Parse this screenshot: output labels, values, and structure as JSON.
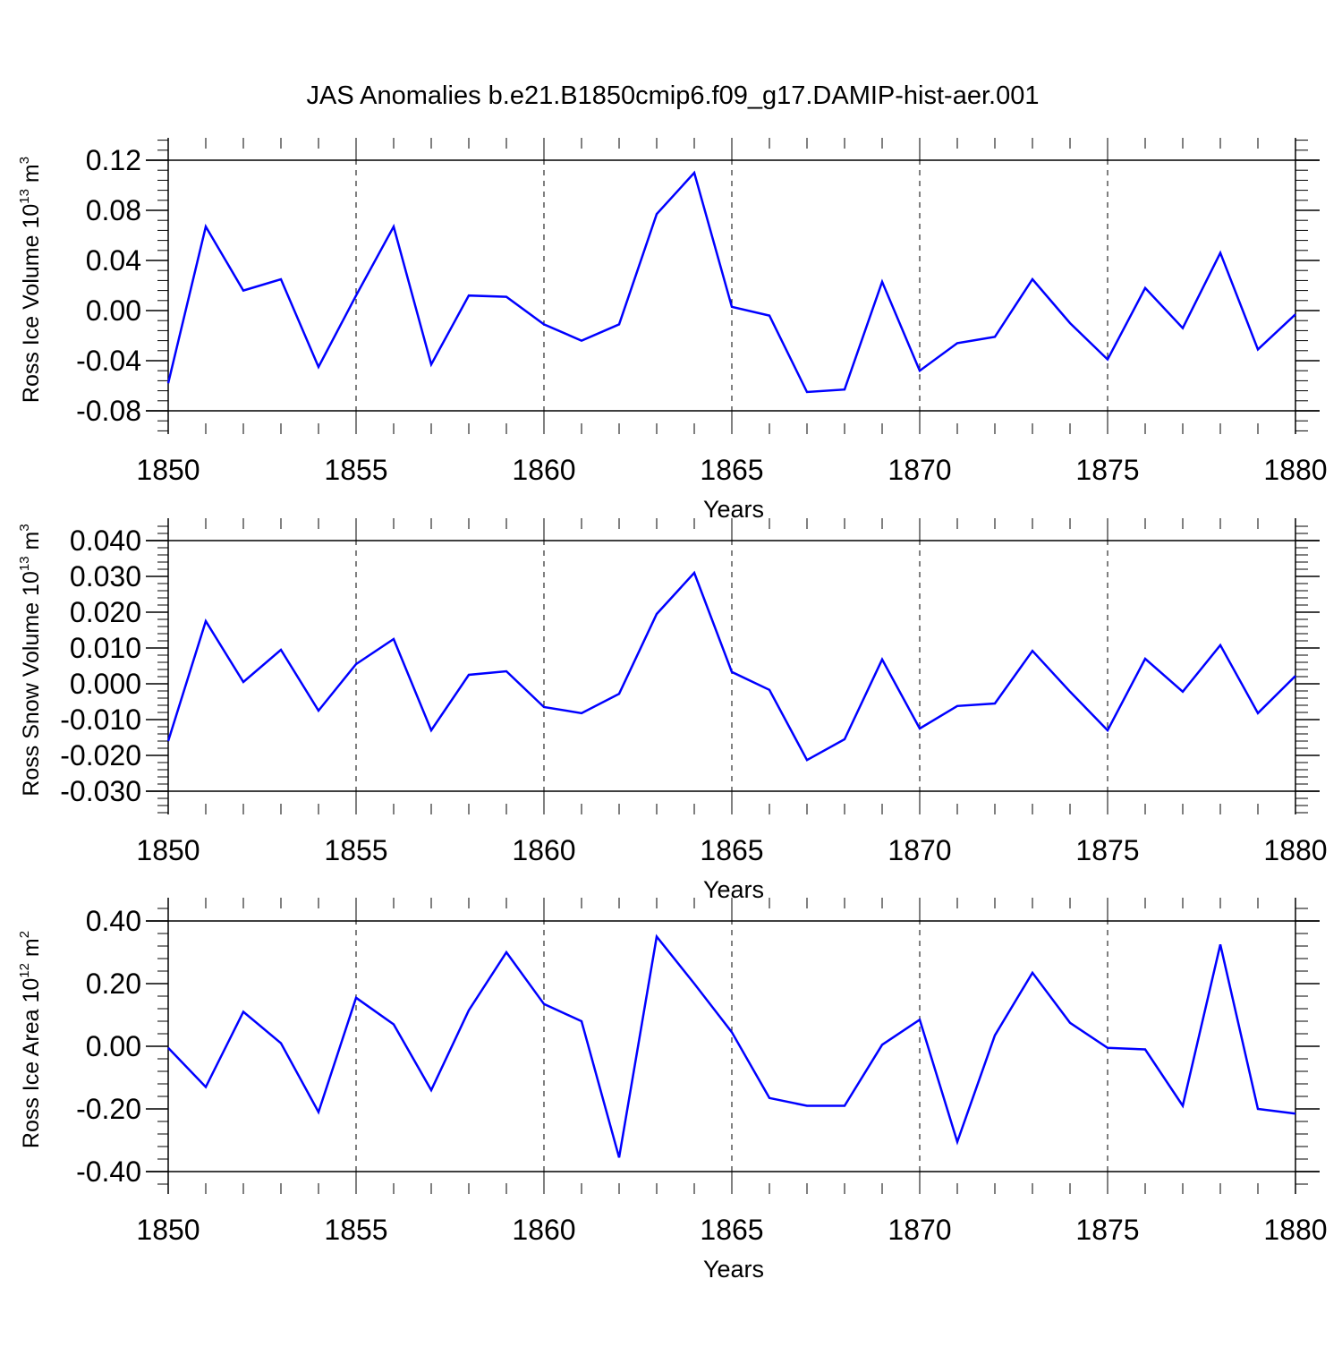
{
  "title": "JAS Anomalies b.e21.B1850cmip6.f09_g17.DAMIP-hist-aer.001",
  "series_color": "#0000ff",
  "chart_data": [
    {
      "type": "line",
      "ylabel": {
        "text": "Ross Ice Volume 10",
        "exp": "13",
        "unit": " m",
        "unit_exp": "3"
      },
      "xlabel": "Years",
      "xlim": [
        1850,
        1880
      ],
      "ylim": [
        -0.09,
        0.12
      ],
      "yticks": [
        0.12,
        0.08,
        0.04,
        0.0,
        -0.04,
        -0.08
      ],
      "ytick_labels": [
        "0.12",
        "0.08",
        "0.04",
        "0.00",
        "-0.04",
        "-0.08"
      ],
      "xticks": [
        1850,
        1855,
        1860,
        1865,
        1870,
        1875,
        1880
      ],
      "xtick_labels": [
        "1850",
        "1855",
        "1860",
        "1865",
        "1870",
        "1875",
        "1880"
      ],
      "grid": "dashed vertical at major x ticks",
      "x": [
        1850,
        1851,
        1852,
        1853,
        1854,
        1855,
        1856,
        1857,
        1858,
        1859,
        1860,
        1861,
        1862,
        1863,
        1864,
        1865,
        1866,
        1867,
        1868,
        1869,
        1870,
        1871,
        1872,
        1873,
        1874,
        1875,
        1876,
        1877,
        1878,
        1879,
        1880
      ],
      "values": [
        -0.058,
        0.067,
        0.016,
        0.025,
        -0.045,
        0.012,
        0.067,
        -0.043,
        0.012,
        0.011,
        -0.011,
        -0.024,
        -0.011,
        0.077,
        0.11,
        0.003,
        -0.004,
        -0.065,
        -0.063,
        0.023,
        -0.048,
        -0.026,
        -0.021,
        0.025,
        -0.01,
        -0.039,
        0.018,
        -0.014,
        0.046,
        -0.031,
        -0.003
      ]
    },
    {
      "type": "line",
      "ylabel": {
        "text": "Ross Snow Volume 10",
        "exp": "13",
        "unit": " m",
        "unit_exp": "3"
      },
      "xlabel": "Years",
      "xlim": [
        1850,
        1880
      ],
      "ylim": [
        -0.03,
        0.04
      ],
      "yticks": [
        0.04,
        0.03,
        0.02,
        0.01,
        0.0,
        -0.01,
        -0.02,
        -0.03
      ],
      "ytick_labels": [
        "0.040",
        "0.030",
        "0.020",
        "0.010",
        "0.000",
        "-0.010",
        "-0.020",
        "-0.030"
      ],
      "xticks": [
        1850,
        1855,
        1860,
        1865,
        1870,
        1875,
        1880
      ],
      "xtick_labels": [
        "1850",
        "1855",
        "1860",
        "1865",
        "1870",
        "1875",
        "1880"
      ],
      "grid": "dashed vertical at major x ticks",
      "x": [
        1850,
        1851,
        1852,
        1853,
        1854,
        1855,
        1856,
        1857,
        1858,
        1859,
        1860,
        1861,
        1862,
        1863,
        1864,
        1865,
        1866,
        1867,
        1868,
        1869,
        1870,
        1871,
        1872,
        1873,
        1874,
        1875,
        1876,
        1877,
        1878,
        1879,
        1880
      ],
      "values": [
        -0.016,
        0.0175,
        0.0005,
        0.0095,
        -0.0075,
        0.0055,
        0.0125,
        -0.013,
        0.0025,
        0.0035,
        -0.0065,
        -0.0082,
        -0.0028,
        0.0195,
        0.031,
        0.0033,
        -0.0017,
        -0.0213,
        -0.0155,
        0.0068,
        -0.0125,
        -0.0062,
        -0.0055,
        0.0092,
        -0.0022,
        -0.013,
        0.007,
        -0.0022,
        0.0108,
        -0.0082,
        0.0022
      ]
    },
    {
      "type": "line",
      "ylabel": {
        "text": "Ross Ice Area 10",
        "exp": "12",
        "unit": " m",
        "unit_exp": "2"
      },
      "xlabel": "Years",
      "xlim": [
        1850,
        1880
      ],
      "ylim": [
        -0.4,
        0.4
      ],
      "yticks": [
        0.4,
        0.2,
        0.0,
        -0.2,
        -0.4
      ],
      "ytick_labels": [
        "0.40",
        "0.20",
        "0.00",
        "-0.20",
        "-0.40"
      ],
      "xticks": [
        1850,
        1855,
        1860,
        1865,
        1870,
        1875,
        1880
      ],
      "xtick_labels": [
        "1850",
        "1855",
        "1860",
        "1865",
        "1870",
        "1875",
        "1880"
      ],
      "grid": "dashed vertical at major x ticks",
      "x": [
        1850,
        1851,
        1852,
        1853,
        1854,
        1855,
        1856,
        1857,
        1858,
        1859,
        1860,
        1861,
        1862,
        1863,
        1864,
        1865,
        1866,
        1867,
        1868,
        1869,
        1870,
        1871,
        1872,
        1873,
        1874,
        1875,
        1876,
        1877,
        1878,
        1879,
        1880
      ],
      "values": [
        -0.005,
        -0.13,
        0.11,
        0.01,
        -0.21,
        0.155,
        0.07,
        -0.14,
        0.115,
        0.3,
        0.135,
        0.08,
        -0.355,
        0.35,
        0.2,
        0.045,
        -0.165,
        -0.19,
        -0.19,
        0.005,
        0.085,
        -0.305,
        0.035,
        0.235,
        0.075,
        -0.005,
        -0.01,
        -0.19,
        0.325,
        -0.2,
        -0.215
      ]
    }
  ]
}
